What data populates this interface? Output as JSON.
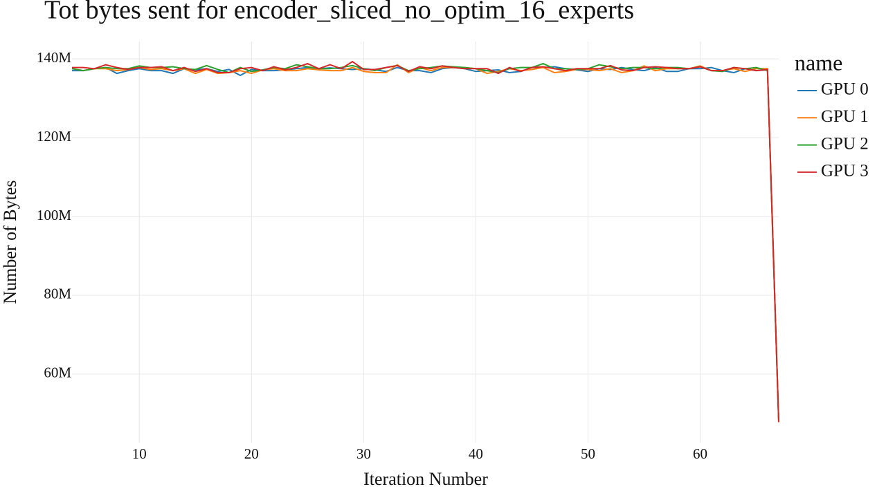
{
  "chart_data": {
    "type": "line",
    "title": "Tot bytes sent for encoder_sliced_no_optim_16_experts",
    "x_label": "Iteration Number",
    "y_label": "Number of Bytes",
    "legend_title": "name",
    "legend_position": "right",
    "grid": true,
    "x": [
      4,
      5,
      6,
      7,
      8,
      9,
      10,
      11,
      12,
      13,
      14,
      15,
      16,
      17,
      18,
      19,
      20,
      21,
      22,
      23,
      24,
      25,
      26,
      27,
      28,
      29,
      30,
      31,
      32,
      33,
      34,
      35,
      36,
      37,
      38,
      39,
      40,
      41,
      42,
      43,
      44,
      45,
      46,
      47,
      48,
      49,
      50,
      51,
      52,
      53,
      54,
      55,
      56,
      57,
      58,
      59,
      60,
      61,
      62,
      63,
      64,
      65,
      66,
      67
    ],
    "xlim": [
      4,
      67
    ],
    "xticks": [
      10,
      20,
      30,
      40,
      50,
      60
    ],
    "ylim": [
      42600000,
      144400000
    ],
    "yticks": [
      {
        "value": 60000000,
        "label": "60M"
      },
      {
        "value": 80000000,
        "label": "80M"
      },
      {
        "value": 100000000,
        "label": "100M"
      },
      {
        "value": 120000000,
        "label": "120M"
      },
      {
        "value": 140000000,
        "label": "140M"
      }
    ],
    "series": [
      {
        "name": "GPU 0",
        "color": "#1f77b4",
        "values": [
          137000000,
          137000000,
          137500000,
          137800000,
          136300000,
          137000000,
          137500000,
          137000000,
          137000000,
          136300000,
          137500000,
          137200000,
          137500000,
          136800000,
          137300000,
          135800000,
          137300000,
          137000000,
          137000000,
          137200000,
          137500000,
          137800000,
          137500000,
          137700000,
          137500000,
          137300000,
          137500000,
          137200000,
          136800000,
          137800000,
          137000000,
          137000000,
          136500000,
          137500000,
          137800000,
          137500000,
          136800000,
          137000000,
          137200000,
          136500000,
          136800000,
          137800000,
          137800000,
          138000000,
          137500000,
          137200000,
          136800000,
          137500000,
          137300000,
          137800000,
          137300000,
          137000000,
          137800000,
          136800000,
          136800000,
          137500000,
          137500000,
          137800000,
          137000000,
          136500000,
          137500000,
          137000000,
          137200000,
          48000000
        ]
      },
      {
        "name": "GPU 1",
        "color": "#ff7f0e",
        "values": [
          137500000,
          137000000,
          137500000,
          137500000,
          137000000,
          137300000,
          137800000,
          137300000,
          137500000,
          137000000,
          137500000,
          136300000,
          137300000,
          136300000,
          136500000,
          137000000,
          136300000,
          137200000,
          137500000,
          137000000,
          137000000,
          137500000,
          137200000,
          137000000,
          137000000,
          137800000,
          136800000,
          136500000,
          136500000,
          138500000,
          136500000,
          137800000,
          137000000,
          137800000,
          137800000,
          137800000,
          137500000,
          136300000,
          136800000,
          137500000,
          137000000,
          137300000,
          137800000,
          136500000,
          136800000,
          137300000,
          137300000,
          137000000,
          137500000,
          136500000,
          137000000,
          138200000,
          137000000,
          137500000,
          137500000,
          137500000,
          138200000,
          137000000,
          137000000,
          137500000,
          136800000,
          137500000,
          137500000,
          48000000
        ]
      },
      {
        "name": "GPU 2",
        "color": "#2ca02c",
        "values": [
          137500000,
          137000000,
          137500000,
          137800000,
          137500000,
          137500000,
          138200000,
          137800000,
          137800000,
          138000000,
          137500000,
          137300000,
          138300000,
          137300000,
          136500000,
          137800000,
          136800000,
          137200000,
          137800000,
          137500000,
          138500000,
          138000000,
          137500000,
          137500000,
          137800000,
          138300000,
          137500000,
          137000000,
          137800000,
          138300000,
          137000000,
          137500000,
          137800000,
          138200000,
          138000000,
          137800000,
          137500000,
          137000000,
          136500000,
          137500000,
          137800000,
          137800000,
          138800000,
          137500000,
          137500000,
          137300000,
          137500000,
          138500000,
          138000000,
          137500000,
          137800000,
          137800000,
          137500000,
          137800000,
          137800000,
          137500000,
          138000000,
          137000000,
          136800000,
          137800000,
          137500000,
          137800000,
          137000000,
          48000000
        ]
      },
      {
        "name": "GPU 3",
        "color": "#d62728",
        "values": [
          137800000,
          137800000,
          137500000,
          138500000,
          137800000,
          137300000,
          137800000,
          137800000,
          138000000,
          137000000,
          137800000,
          136800000,
          137500000,
          136500000,
          136500000,
          137500000,
          137800000,
          137000000,
          138000000,
          137200000,
          137800000,
          138800000,
          137500000,
          138500000,
          137500000,
          139300000,
          137300000,
          137300000,
          137800000,
          138300000,
          136800000,
          138000000,
          137500000,
          138200000,
          137800000,
          137500000,
          137500000,
          137500000,
          136300000,
          137800000,
          136800000,
          137800000,
          138000000,
          137500000,
          137000000,
          137500000,
          137500000,
          137500000,
          138300000,
          137200000,
          137000000,
          137800000,
          138000000,
          137800000,
          137500000,
          137500000,
          138000000,
          137000000,
          137000000,
          137800000,
          137500000,
          137000000,
          137300000,
          47800000
        ]
      }
    ]
  }
}
